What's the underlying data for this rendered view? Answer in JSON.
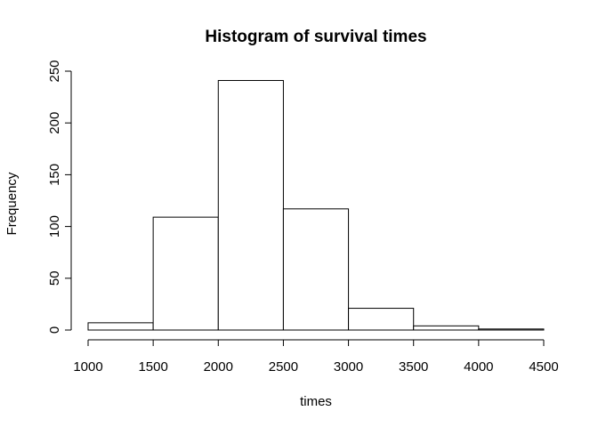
{
  "chart_data": {
    "type": "bar",
    "title": "Histogram of survival times",
    "xlabel": "times",
    "ylabel": "Frequency",
    "bins": [
      {
        "start": 1000,
        "end": 1500,
        "count": 7
      },
      {
        "start": 1500,
        "end": 2000,
        "count": 109
      },
      {
        "start": 2000,
        "end": 2500,
        "count": 241
      },
      {
        "start": 2500,
        "end": 3000,
        "count": 117
      },
      {
        "start": 3000,
        "end": 3500,
        "count": 21
      },
      {
        "start": 3500,
        "end": 4000,
        "count": 4
      },
      {
        "start": 4000,
        "end": 4500,
        "count": 1
      }
    ],
    "xlim": [
      1000,
      4500
    ],
    "ylim": [
      0,
      250
    ],
    "x_ticks": [
      "1000",
      "1500",
      "2000",
      "2500",
      "3000",
      "3500",
      "4000",
      "4500"
    ],
    "y_ticks": [
      "0",
      "50",
      "100",
      "150",
      "200",
      "250"
    ],
    "grid": false,
    "colors": {
      "bar_fill": "#ffffff",
      "bar_stroke": "#000000"
    }
  }
}
